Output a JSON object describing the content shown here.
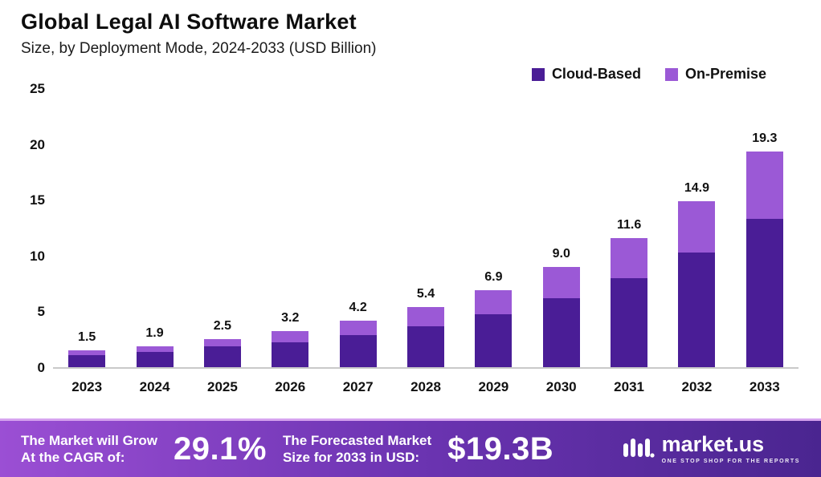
{
  "header": {
    "title": "Global Legal AI Software Market",
    "subtitle": "Size, by Deployment Mode, 2024-2033 (USD Billion)"
  },
  "chart_data": {
    "type": "bar",
    "stacked": true,
    "title": "Global Legal AI Software Market",
    "subtitle": "Size, by Deployment Mode, 2024-2033 (USD Billion)",
    "categories": [
      "2023",
      "2024",
      "2025",
      "2026",
      "2027",
      "2028",
      "2029",
      "2030",
      "2031",
      "2032",
      "2033"
    ],
    "series": [
      {
        "name": "Cloud-Based",
        "color": "#4a1d96",
        "values": [
          1.1,
          1.4,
          1.85,
          2.25,
          2.9,
          3.7,
          4.75,
          6.2,
          8.0,
          10.3,
          13.3
        ]
      },
      {
        "name": "On-Premise",
        "color": "#9b59d6",
        "values": [
          0.4,
          0.5,
          0.65,
          0.95,
          1.3,
          1.7,
          2.15,
          2.8,
          3.6,
          4.6,
          6.0
        ]
      }
    ],
    "totals": [
      "1.5",
      "1.9",
      "2.5",
      "3.2",
      "4.2",
      "5.4",
      "6.9",
      "9.0",
      "11.6",
      "14.9",
      "19.3"
    ],
    "ylabel": "",
    "xlabel": "",
    "ylim": [
      0,
      25
    ],
    "yticks": [
      0,
      5,
      10,
      15,
      20,
      25
    ],
    "grid": false,
    "legend_position": "top-right",
    "units": "USD Billion"
  },
  "footer": {
    "cagr_label_line1": "The Market will Grow",
    "cagr_label_line2": "At the CAGR of:",
    "cagr_value": "29.1%",
    "forecast_label_line1": "The Forecasted Market",
    "forecast_label_line2": "Size for 2033 in USD:",
    "forecast_value": "$19.3B",
    "brand": "market.us",
    "tagline": "ONE STOP SHOP FOR THE REPORTS"
  }
}
